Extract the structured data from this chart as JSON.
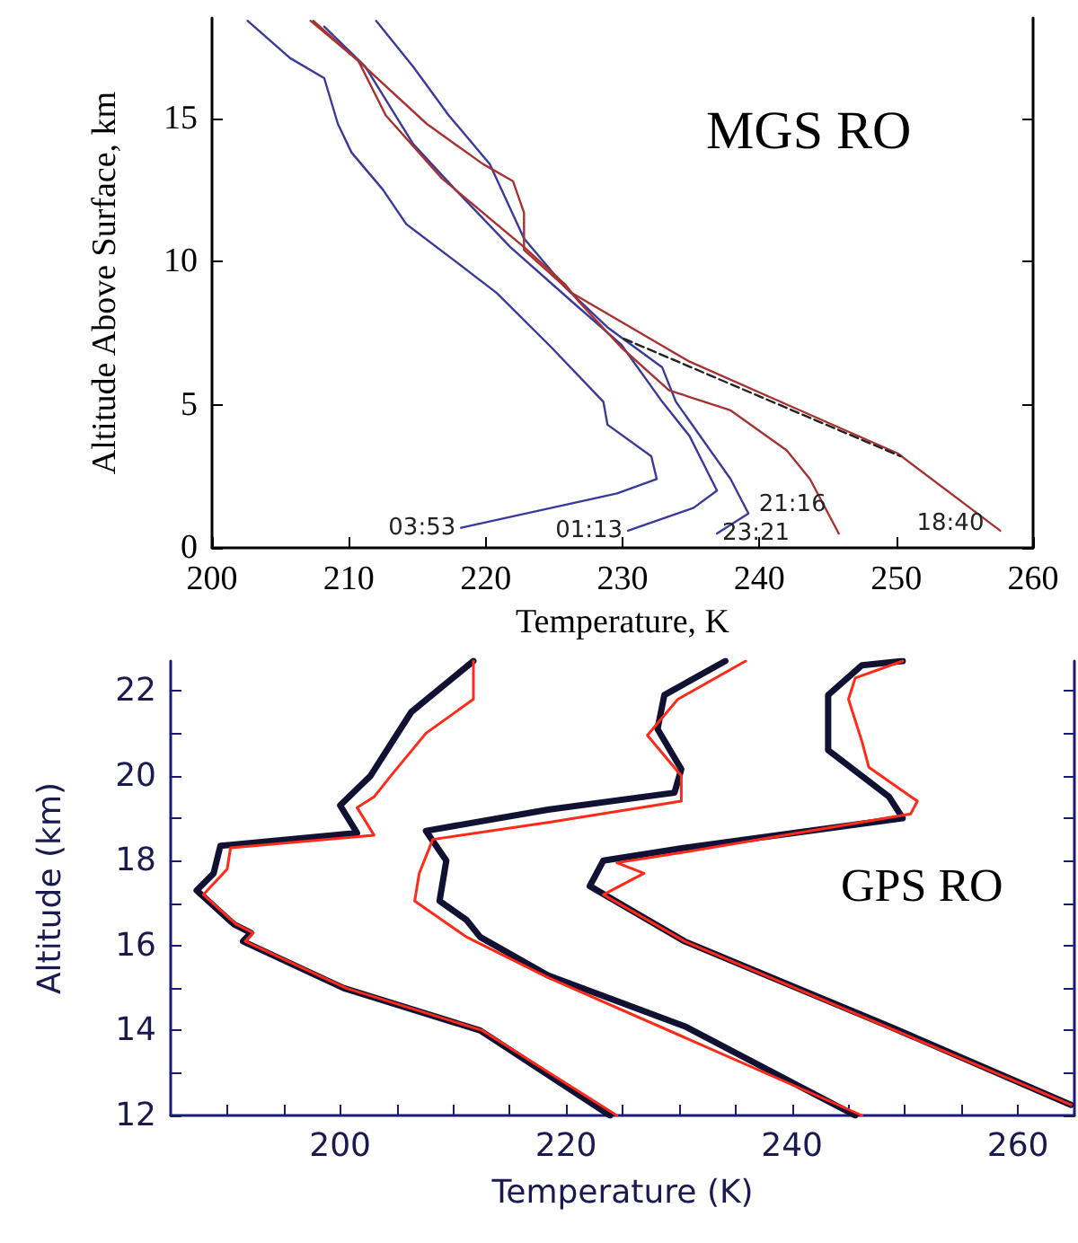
{
  "chart_data": [
    {
      "type": "line",
      "xlabel": "Temperature, K",
      "ylabel": "Altitude Above Surface, km",
      "annotations": [
        "MGS RO"
      ],
      "xlim": [
        200,
        260
      ],
      "ylim": [
        0,
        18.5
      ],
      "xticks": [
        200,
        210,
        220,
        230,
        240,
        250,
        260
      ],
      "yticks": [
        0,
        5,
        10,
        15
      ],
      "marker": "none",
      "line_style": "solid",
      "series": [
        {
          "name": "03:53",
          "color": "#3a3a9a",
          "x": [
            218.2,
            229.6,
            232.5,
            232.1,
            228.9,
            228.6,
            224.8,
            220.8,
            217.8,
            214.2,
            212.5,
            210.2,
            209.2,
            208.2,
            205.7,
            202.6
          ],
          "values": [
            0.7,
            1.9,
            2.4,
            3.2,
            4.3,
            5.1,
            7.0,
            8.9,
            10.0,
            11.3,
            12.5,
            13.8,
            14.8,
            16.4,
            17.1,
            18.4
          ]
        },
        {
          "name": "01:13",
          "color": "#3a3a9a",
          "x": [
            230.4,
            235.2,
            236.9,
            234.9,
            232.9,
            229.9,
            226.3,
            221.8,
            217.8,
            214.7,
            211.2,
            208.2
          ],
          "values": [
            0.6,
            1.4,
            2.0,
            3.9,
            5.1,
            7.1,
            8.6,
            10.5,
            12.5,
            14.1,
            16.8,
            18.2
          ]
        },
        {
          "name": "23:21",
          "color": "#3a3a9a",
          "x": [
            236.9,
            239.2,
            237.9,
            233.9,
            232.9,
            228.9,
            225.8,
            222.8,
            220.3,
            217.3,
            214.7,
            212.0
          ],
          "values": [
            0.5,
            1.2,
            2.4,
            5.1,
            6.3,
            7.7,
            9.1,
            10.8,
            13.4,
            15.1,
            16.8,
            18.4
          ]
        },
        {
          "name": "21:16",
          "color": "#a83232",
          "x": [
            245.8,
            243.7,
            242.0,
            237.9,
            233.4,
            229.9,
            226.8,
            225.8,
            222.8,
            219.8,
            216.8,
            212.7,
            210.7,
            207.2
          ],
          "values": [
            0.5,
            2.4,
            3.4,
            4.8,
            5.5,
            7.0,
            8.6,
            9.2,
            10.5,
            11.7,
            12.9,
            15.1,
            17.0,
            18.4
          ]
        },
        {
          "name": "18:40",
          "color": "#a83232",
          "x": [
            257.6,
            250.1,
            242.5,
            234.9,
            226.3,
            222.8,
            222.8,
            222.0,
            219.8,
            215.7,
            210.7,
            207.4
          ],
          "values": [
            0.6,
            3.3,
            4.9,
            6.5,
            8.9,
            10.4,
            11.7,
            12.8,
            13.4,
            14.8,
            17.0,
            18.4
          ]
        },
        {
          "color": "#222222",
          "line_style": "dashed",
          "x": [
            230.1,
            250.3
          ],
          "values": [
            7.3,
            3.2
          ]
        }
      ]
    },
    {
      "type": "line",
      "xlabel": "Temperature (K)",
      "ylabel": "Altitude (km)",
      "annotations": [
        "GPS RO"
      ],
      "xlim": [
        185,
        265
      ],
      "ylim": [
        12,
        22.7
      ],
      "xticks": [
        {
          "value": 190,
          "label": null
        },
        {
          "value": 195,
          "label": null
        },
        200,
        {
          "value": 205,
          "label": null
        },
        {
          "value": 210,
          "label": null
        },
        {
          "value": 215,
          "label": null
        },
        220,
        {
          "value": 225,
          "label": null
        },
        {
          "value": 230,
          "label": null
        },
        {
          "value": 235,
          "label": null
        },
        240,
        {
          "value": 245,
          "label": null
        },
        {
          "value": 250,
          "label": null
        },
        {
          "value": 255,
          "label": null
        },
        260
      ],
      "yticks": [
        12,
        {
          "value": 13,
          "label": null
        },
        14,
        {
          "value": 15,
          "label": null
        },
        16,
        {
          "value": 17,
          "label": null
        },
        18,
        {
          "value": 19,
          "label": null
        },
        20,
        {
          "value": 21,
          "label": null
        },
        22
      ],
      "marker": "none",
      "line_style": "solid",
      "series": [
        {
          "color": "#111133",
          "x": [
            223.9,
            212.4,
            200.3,
            191.4,
            192.1,
            190.6,
            187.3,
            188.8,
            189.4,
            201.5,
            200.0,
            202.7,
            206.3,
            211.8
          ],
          "values": [
            12.0,
            14.0,
            15.0,
            16.1,
            16.3,
            16.5,
            17.3,
            17.7,
            18.35,
            18.65,
            19.3,
            20.0,
            21.5,
            22.7
          ]
        },
        {
          "color": "#111133",
          "x": [
            245.6,
            230.5,
            218.4,
            212.4,
            211.2,
            208.8,
            209.4,
            207.6,
            218.4,
            229.6,
            230.2,
            228.1,
            228.7,
            234.1
          ],
          "values": [
            12.0,
            14.1,
            15.3,
            16.2,
            16.6,
            17.05,
            18.0,
            18.7,
            19.2,
            19.6,
            20.15,
            21.1,
            21.9,
            22.7
          ]
        },
        {
          "color": "#111133",
          "x": [
            264.7,
            248.6,
            230.5,
            222.1,
            223.3,
            230.5,
            249.8,
            248.6,
            243.2,
            243.2,
            246.2,
            249.8
          ],
          "values": [
            12.25,
            14.1,
            16.1,
            17.4,
            18.0,
            18.3,
            19.0,
            19.5,
            20.6,
            21.9,
            22.6,
            22.7
          ]
        },
        {
          "color": "#ff2a1a",
          "x": [
            224.5,
            212.6,
            200.5,
            191.6,
            192.3,
            190.8,
            187.9,
            190.0,
            190.3,
            203.0,
            201.5,
            203.0,
            204.5,
            207.6,
            211.8,
            211.8
          ],
          "values": [
            12.0,
            14.0,
            15.0,
            16.1,
            16.3,
            16.5,
            17.2,
            17.8,
            18.3,
            18.6,
            19.25,
            19.5,
            20.0,
            21.0,
            21.8,
            22.7
          ]
        },
        {
          "color": "#ff2a1a",
          "x": [
            246.2,
            218.4,
            211.2,
            206.6,
            207.0,
            208.2,
            218.4,
            230.2,
            230.2,
            227.2,
            229.9,
            235.9
          ],
          "values": [
            12.0,
            15.25,
            16.2,
            17.05,
            17.7,
            18.5,
            18.9,
            19.4,
            20.0,
            20.95,
            21.8,
            22.7
          ]
        },
        {
          "color": "#ff2a1a",
          "x": [
            264.7,
            230.5,
            223.3,
            226.9,
            224.5,
            230.5,
            250.5,
            251.1,
            246.8,
            246.2,
            245.0,
            245.6,
            249.8
          ],
          "values": [
            12.25,
            16.1,
            17.2,
            17.7,
            17.95,
            18.2,
            19.1,
            19.4,
            20.2,
            20.8,
            21.8,
            22.3,
            22.7
          ]
        }
      ]
    }
  ]
}
